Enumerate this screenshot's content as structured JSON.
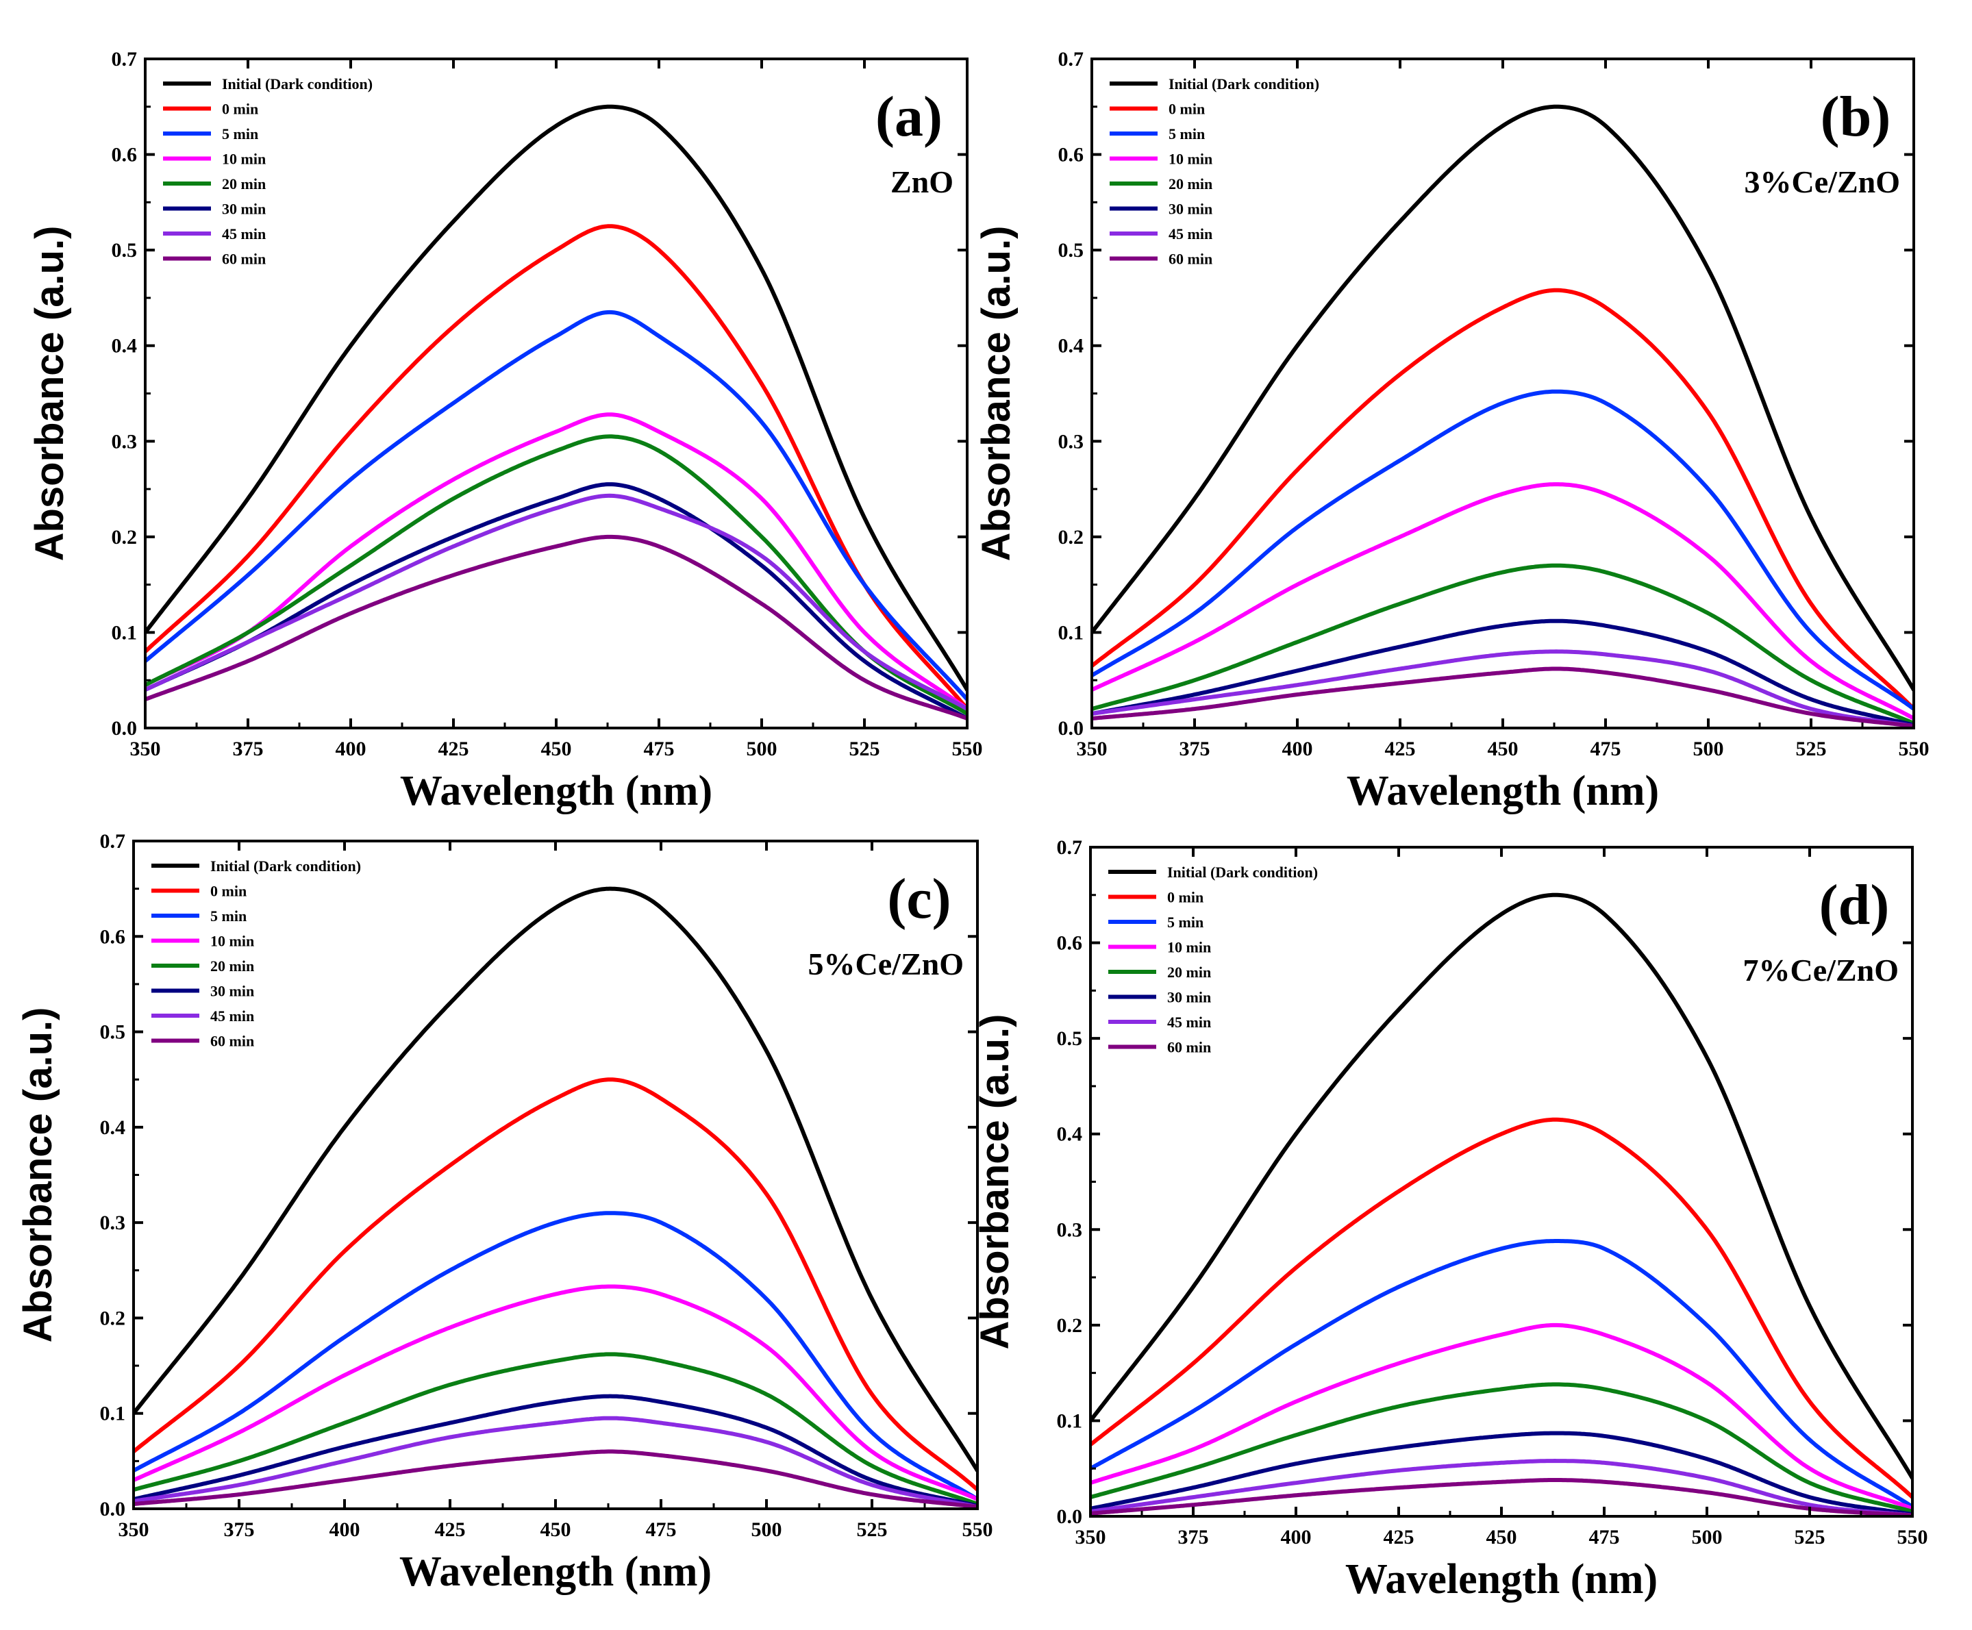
{
  "figure": {
    "colors": {
      "Initial (Dark condition)": "#000000",
      "0 min": "#ff0000",
      "5 min": "#0033ff",
      "10 min": "#ff00ff",
      "20 min": "#0a7f14",
      "30 min": "#000080",
      "45 min": "#8a2be2",
      "60 min": "#800080"
    }
  },
  "chart_data": [
    {
      "type": "line",
      "panel_label": "(a)",
      "sample_label": "ZnO",
      "xlabel": "Wavelength (nm)",
      "ylabel": "Absorbance (a.u.)",
      "xlim": [
        350,
        550
      ],
      "ylim": [
        0.0,
        0.7
      ],
      "xticks": [
        "350",
        "375",
        "400",
        "425",
        "450",
        "475",
        "500",
        "525",
        "550"
      ],
      "yticks": [
        "0.0",
        "0.1",
        "0.2",
        "0.3",
        "0.4",
        "0.5",
        "0.6",
        "0.7"
      ],
      "legend_position": "top-left",
      "x": [
        350,
        375,
        400,
        425,
        450,
        463,
        475,
        500,
        525,
        550
      ],
      "series": [
        {
          "name": "Initial (Dark condition)",
          "values": [
            0.1,
            0.24,
            0.4,
            0.53,
            0.63,
            0.65,
            0.63,
            0.48,
            0.22,
            0.04
          ]
        },
        {
          "name": "0 min",
          "values": [
            0.08,
            0.18,
            0.31,
            0.42,
            0.5,
            0.525,
            0.5,
            0.36,
            0.15,
            0.02
          ]
        },
        {
          "name": "5 min",
          "values": [
            0.07,
            0.16,
            0.26,
            0.34,
            0.41,
            0.435,
            0.41,
            0.32,
            0.15,
            0.03
          ]
        },
        {
          "name": "10 min",
          "values": [
            0.045,
            0.1,
            0.19,
            0.26,
            0.31,
            0.328,
            0.31,
            0.24,
            0.1,
            0.02
          ]
        },
        {
          "name": "20 min",
          "values": [
            0.045,
            0.1,
            0.17,
            0.24,
            0.29,
            0.305,
            0.29,
            0.2,
            0.08,
            0.015
          ]
        },
        {
          "name": "30 min",
          "values": [
            0.04,
            0.09,
            0.15,
            0.2,
            0.24,
            0.255,
            0.24,
            0.17,
            0.07,
            0.01
          ]
        },
        {
          "name": "45 min",
          "values": [
            0.04,
            0.09,
            0.14,
            0.19,
            0.23,
            0.243,
            0.23,
            0.18,
            0.08,
            0.02
          ]
        },
        {
          "name": "60 min",
          "values": [
            0.03,
            0.07,
            0.12,
            0.16,
            0.19,
            0.2,
            0.19,
            0.13,
            0.05,
            0.01
          ]
        }
      ]
    },
    {
      "type": "line",
      "panel_label": "(b)",
      "sample_label": "3%Ce/ZnO",
      "xlabel": "Wavelength (nm)",
      "ylabel": "Absorbance (a.u.)",
      "xlim": [
        350,
        550
      ],
      "ylim": [
        0.0,
        0.7
      ],
      "xticks": [
        "350",
        "375",
        "400",
        "425",
        "450",
        "475",
        "500",
        "525",
        "550"
      ],
      "yticks": [
        "0.0",
        "0.1",
        "0.2",
        "0.3",
        "0.4",
        "0.5",
        "0.6",
        "0.7"
      ],
      "legend_position": "top-left",
      "x": [
        350,
        375,
        400,
        425,
        450,
        463,
        475,
        500,
        525,
        550
      ],
      "series": [
        {
          "name": "Initial (Dark condition)",
          "values": [
            0.1,
            0.24,
            0.4,
            0.53,
            0.63,
            0.65,
            0.63,
            0.48,
            0.22,
            0.04
          ]
        },
        {
          "name": "0 min",
          "values": [
            0.065,
            0.15,
            0.27,
            0.37,
            0.44,
            0.458,
            0.44,
            0.33,
            0.13,
            0.02
          ]
        },
        {
          "name": "5 min",
          "values": [
            0.055,
            0.12,
            0.21,
            0.28,
            0.34,
            0.352,
            0.34,
            0.25,
            0.1,
            0.02
          ]
        },
        {
          "name": "10 min",
          "values": [
            0.04,
            0.09,
            0.15,
            0.2,
            0.245,
            0.255,
            0.245,
            0.18,
            0.07,
            0.01
          ]
        },
        {
          "name": "20 min",
          "values": [
            0.02,
            0.05,
            0.09,
            0.13,
            0.163,
            0.17,
            0.163,
            0.12,
            0.05,
            0.005
          ]
        },
        {
          "name": "30 min",
          "values": [
            0.015,
            0.035,
            0.06,
            0.085,
            0.107,
            0.112,
            0.107,
            0.08,
            0.03,
            0.003
          ]
        },
        {
          "name": "45 min",
          "values": [
            0.015,
            0.03,
            0.045,
            0.062,
            0.077,
            0.08,
            0.077,
            0.06,
            0.02,
            0.002
          ]
        },
        {
          "name": "60 min",
          "values": [
            0.01,
            0.02,
            0.035,
            0.047,
            0.058,
            0.062,
            0.058,
            0.04,
            0.015,
            0.002
          ]
        }
      ]
    },
    {
      "type": "line",
      "panel_label": "(c)",
      "sample_label": "5%Ce/ZnO",
      "xlabel": "Wavelength (nm)",
      "ylabel": "Absorbance (a.u.)",
      "xlim": [
        350,
        550
      ],
      "ylim": [
        0.0,
        0.7
      ],
      "xticks": [
        "350",
        "375",
        "400",
        "425",
        "450",
        "475",
        "500",
        "525",
        "550"
      ],
      "yticks": [
        "0.0",
        "0.1",
        "0.2",
        "0.3",
        "0.4",
        "0.5",
        "0.6",
        "0.7"
      ],
      "legend_position": "top-left",
      "x": [
        350,
        375,
        400,
        425,
        450,
        463,
        475,
        500,
        525,
        550
      ],
      "series": [
        {
          "name": "Initial (Dark condition)",
          "values": [
            0.1,
            0.24,
            0.4,
            0.53,
            0.63,
            0.65,
            0.63,
            0.48,
            0.22,
            0.04
          ]
        },
        {
          "name": "0 min",
          "values": [
            0.06,
            0.15,
            0.27,
            0.36,
            0.43,
            0.45,
            0.43,
            0.33,
            0.12,
            0.02
          ]
        },
        {
          "name": "5 min",
          "values": [
            0.04,
            0.1,
            0.18,
            0.25,
            0.3,
            0.31,
            0.3,
            0.22,
            0.08,
            0.01
          ]
        },
        {
          "name": "10 min",
          "values": [
            0.03,
            0.08,
            0.14,
            0.19,
            0.225,
            0.233,
            0.225,
            0.17,
            0.06,
            0.01
          ]
        },
        {
          "name": "20 min",
          "values": [
            0.02,
            0.05,
            0.09,
            0.13,
            0.155,
            0.162,
            0.155,
            0.12,
            0.045,
            0.005
          ]
        },
        {
          "name": "30 min",
          "values": [
            0.01,
            0.035,
            0.065,
            0.09,
            0.112,
            0.118,
            0.112,
            0.085,
            0.03,
            0.003
          ]
        },
        {
          "name": "45 min",
          "values": [
            0.008,
            0.025,
            0.05,
            0.075,
            0.09,
            0.095,
            0.09,
            0.07,
            0.025,
            0.002
          ]
        },
        {
          "name": "60 min",
          "values": [
            0.005,
            0.015,
            0.03,
            0.045,
            0.056,
            0.06,
            0.056,
            0.04,
            0.015,
            0.002
          ]
        }
      ]
    },
    {
      "type": "line",
      "panel_label": "(d)",
      "sample_label": "7%Ce/ZnO",
      "xlabel": "Wavelength (nm)",
      "ylabel": "Absorbance (a.u.)",
      "xlim": [
        350,
        550
      ],
      "ylim": [
        0.0,
        0.7
      ],
      "xticks": [
        "350",
        "375",
        "400",
        "425",
        "450",
        "475",
        "500",
        "525",
        "550"
      ],
      "yticks": [
        "0.0",
        "0.1",
        "0.2",
        "0.3",
        "0.4",
        "0.5",
        "0.6",
        "0.7"
      ],
      "legend_position": "top-left",
      "x": [
        350,
        375,
        400,
        425,
        450,
        463,
        475,
        500,
        525,
        550
      ],
      "series": [
        {
          "name": "Initial (Dark condition)",
          "values": [
            0.1,
            0.24,
            0.4,
            0.53,
            0.63,
            0.65,
            0.63,
            0.48,
            0.22,
            0.04
          ]
        },
        {
          "name": "0 min",
          "values": [
            0.075,
            0.16,
            0.26,
            0.34,
            0.4,
            0.415,
            0.4,
            0.3,
            0.12,
            0.02
          ]
        },
        {
          "name": "5 min",
          "values": [
            0.05,
            0.11,
            0.18,
            0.24,
            0.28,
            0.288,
            0.28,
            0.2,
            0.08,
            0.01
          ]
        },
        {
          "name": "10 min",
          "values": [
            0.035,
            0.07,
            0.12,
            0.16,
            0.19,
            0.2,
            0.19,
            0.14,
            0.05,
            0.008
          ]
        },
        {
          "name": "20 min",
          "values": [
            0.02,
            0.05,
            0.085,
            0.115,
            0.133,
            0.138,
            0.133,
            0.1,
            0.035,
            0.005
          ]
        },
        {
          "name": "30 min",
          "values": [
            0.008,
            0.03,
            0.055,
            0.072,
            0.084,
            0.087,
            0.084,
            0.06,
            0.02,
            0.002
          ]
        },
        {
          "name": "45 min",
          "values": [
            0.005,
            0.02,
            0.035,
            0.048,
            0.056,
            0.058,
            0.056,
            0.04,
            0.012,
            0.001
          ]
        },
        {
          "name": "60 min",
          "values": [
            0.003,
            0.012,
            0.022,
            0.03,
            0.036,
            0.038,
            0.036,
            0.025,
            0.008,
            0.001
          ]
        }
      ]
    }
  ]
}
